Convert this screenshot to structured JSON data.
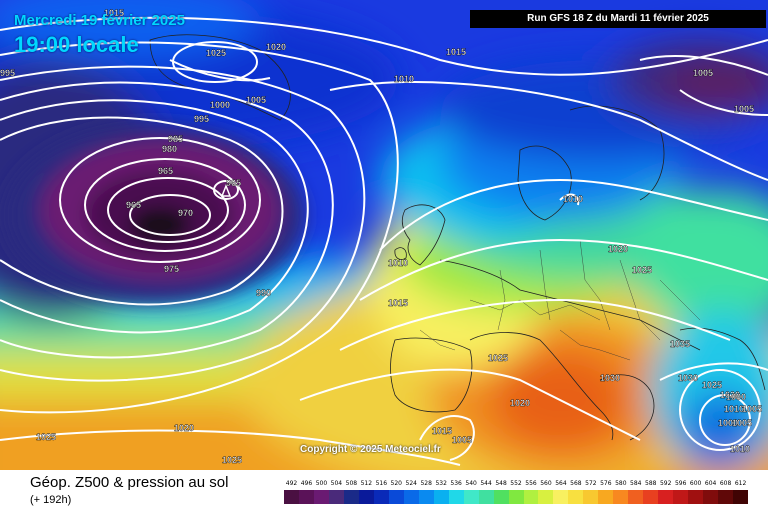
{
  "header": {
    "date": "Mercredi 19 février 2025",
    "time": "19:00 locale",
    "run": "Run GFS 18 Z du Mardi 11 février 2025"
  },
  "copyright": "Copyright © 2025 Meteociel.fr",
  "footer": {
    "title": "Géop. Z500 & pression au sol",
    "subtitle": "(+ 192h)"
  },
  "legend": {
    "labels": [
      "492",
      "496",
      "500",
      "504",
      "508",
      "512",
      "516",
      "520",
      "524",
      "528",
      "532",
      "536",
      "540",
      "544",
      "548",
      "552",
      "556",
      "560",
      "564",
      "568",
      "572",
      "576",
      "580",
      "584",
      "588",
      "592",
      "596",
      "600",
      "604",
      "608",
      "612"
    ],
    "colors": [
      "#4a1042",
      "#5a1258",
      "#6a1a72",
      "#4a2a7a",
      "#1a2a88",
      "#0a1a9a",
      "#0a2ab8",
      "#0a4ad8",
      "#0a6ae8",
      "#0a8af0",
      "#0ab0f0",
      "#20d8e8",
      "#40e8c8",
      "#40e0a0",
      "#50e060",
      "#80e840",
      "#b0f040",
      "#d8f040",
      "#f8f060",
      "#f8e040",
      "#f8c830",
      "#f8a820",
      "#f88820",
      "#f06020",
      "#e84020",
      "#d82020",
      "#c01818",
      "#a01010",
      "#800c0c",
      "#600808",
      "#400404"
    ]
  },
  "pressure_labels": [
    {
      "text": "1015"
    },
    {
      "text": "1025"
    },
    {
      "text": "1020"
    },
    {
      "text": "995"
    },
    {
      "text": "1015"
    },
    {
      "text": "1010"
    },
    {
      "text": "1005"
    },
    {
      "text": "1000"
    },
    {
      "text": "995"
    },
    {
      "text": "985"
    },
    {
      "text": "980"
    },
    {
      "text": "965"
    },
    {
      "text": "965"
    },
    {
      "text": "965"
    },
    {
      "text": "970"
    },
    {
      "text": "975"
    },
    {
      "text": "990"
    },
    {
      "text": "1010"
    },
    {
      "text": "1015"
    },
    {
      "text": "1010"
    },
    {
      "text": "1020"
    },
    {
      "text": "1025"
    },
    {
      "text": "1025"
    },
    {
      "text": "1035"
    },
    {
      "text": "1030"
    },
    {
      "text": "1030"
    },
    {
      "text": "1025"
    },
    {
      "text": "1020"
    },
    {
      "text": "1010"
    },
    {
      "text": "1005"
    },
    {
      "text": "1000"
    },
    {
      "text": "1005"
    },
    {
      "text": "1010"
    },
    {
      "text": "1020"
    },
    {
      "text": "1015"
    },
    {
      "text": "1005"
    },
    {
      "text": "1025"
    },
    {
      "text": "1020"
    },
    {
      "text": "1025"
    },
    {
      "text": "1005"
    },
    {
      "text": "1005"
    },
    {
      "text": "1000"
    }
  ]
}
